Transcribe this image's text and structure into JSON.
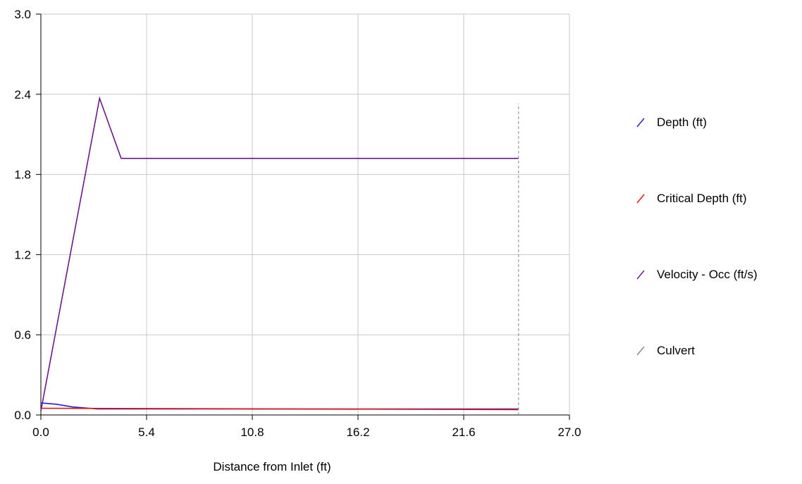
{
  "chart_data": {
    "type": "line",
    "title": "",
    "xlabel": "Distance from Inlet (ft)",
    "ylabel": "",
    "xlim": [
      0,
      27
    ],
    "ylim": [
      0,
      3
    ],
    "x_ticks": [
      "0.0",
      "5.4",
      "10.8",
      "16.2",
      "21.6",
      "27.0"
    ],
    "y_ticks": [
      "0.0",
      "0.6",
      "1.2",
      "1.8",
      "2.4",
      "3.0"
    ],
    "x_tick_values": [
      0,
      5.4,
      10.8,
      16.2,
      21.6,
      27
    ],
    "y_tick_values": [
      0,
      0.6,
      1.2,
      1.8,
      2.4,
      3.0
    ],
    "grid": true,
    "legend_position": "right",
    "series": [
      {
        "name": "Depth (ft)",
        "color": "#1f1fd6",
        "style": "solid",
        "points": [
          [
            0,
            0.09
          ],
          [
            0.8,
            0.08
          ],
          [
            1.6,
            0.06
          ],
          [
            2.9,
            0.045
          ],
          [
            24.4,
            0.045
          ]
        ]
      },
      {
        "name": "Critical Depth (ft)",
        "color": "#e01010",
        "style": "solid",
        "points": [
          [
            0,
            0.05
          ],
          [
            24.4,
            0.04
          ]
        ]
      },
      {
        "name": "Velocity - Occ (ft/s)",
        "color": "#6a1a88",
        "style": "solid",
        "points": [
          [
            0,
            0.03
          ],
          [
            3.0,
            2.37
          ],
          [
            4.1,
            1.92
          ],
          [
            24.4,
            1.92
          ]
        ]
      },
      {
        "name": "Culvert",
        "color": "#888888",
        "style": "dashed",
        "points": [
          [
            24.4,
            0
          ],
          [
            24.4,
            2.33
          ]
        ]
      }
    ]
  }
}
